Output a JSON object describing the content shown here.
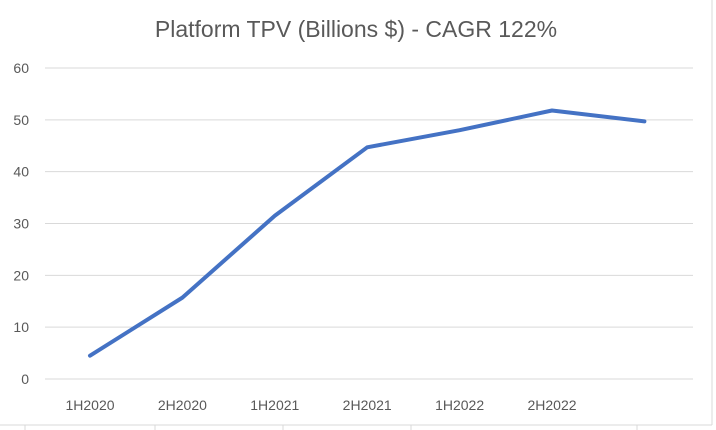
{
  "chart_data": {
    "type": "line",
    "title": "Platform TPV (Billions $) - CAGR 122%",
    "xlabel": "",
    "ylabel": "",
    "categories": [
      "1H2020",
      "2H2020",
      "1H2021",
      "2H2021",
      "1H2022",
      "2H2022",
      ""
    ],
    "series": [
      {
        "values": [
          4.5,
          15.7,
          31.5,
          44.7,
          48.0,
          51.8,
          49.7
        ]
      }
    ],
    "ylim": [
      0,
      60
    ],
    "yticks": [
      "0",
      "10",
      "20",
      "30",
      "40",
      "50",
      "60"
    ],
    "grid": true,
    "legend": "none",
    "colors": {
      "series": "#4472c4",
      "grid": "#d9d9d9",
      "text": "#595959"
    }
  }
}
